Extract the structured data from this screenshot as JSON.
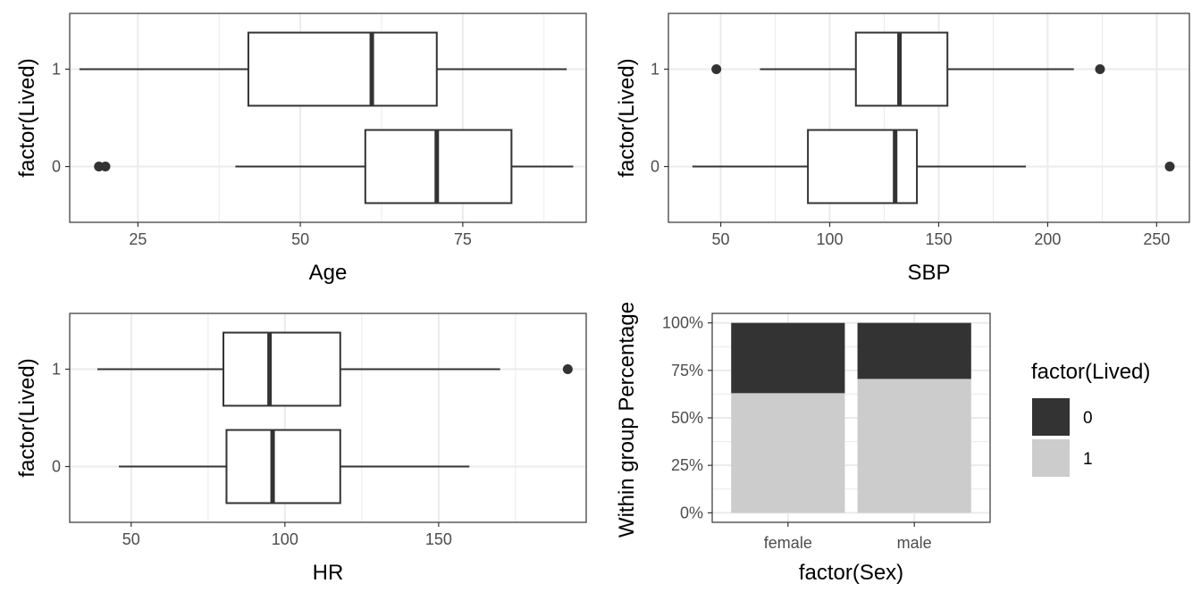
{
  "chart_data": [
    {
      "type": "boxplot",
      "orientation": "horizontal",
      "xlabel": "Age",
      "ylabel": "factor(Lived)",
      "xlim": [
        14.5,
        94
      ],
      "x_ticks": [
        25,
        50,
        75
      ],
      "x_tick_labels": [
        "25",
        "50",
        "75"
      ],
      "categories": [
        "0",
        "1"
      ],
      "boxes": [
        {
          "group": "1",
          "whisker_low": 16,
          "q1": 42,
          "median": 61,
          "q3": 71,
          "whisker_high": 91,
          "outliers": []
        },
        {
          "group": "0",
          "whisker_low": 40,
          "q1": 60,
          "median": 71,
          "q3": 82.5,
          "whisker_high": 92,
          "outliers": [
            19,
            20
          ]
        }
      ],
      "grid": true
    },
    {
      "type": "boxplot",
      "orientation": "horizontal",
      "xlabel": "SBP",
      "ylabel": "factor(Lived)",
      "xlim": [
        26,
        265
      ],
      "x_ticks": [
        50,
        100,
        150,
        200,
        250
      ],
      "x_tick_labels": [
        "50",
        "100",
        "150",
        "200",
        "250"
      ],
      "categories": [
        "0",
        "1"
      ],
      "boxes": [
        {
          "group": "1",
          "whisker_low": 68,
          "q1": 112,
          "median": 132,
          "q3": 154,
          "whisker_high": 212,
          "outliers": [
            48,
            224
          ]
        },
        {
          "group": "0",
          "whisker_low": 37,
          "q1": 90,
          "median": 130,
          "q3": 140,
          "whisker_high": 190,
          "outliers": [
            256
          ]
        }
      ],
      "grid": true
    },
    {
      "type": "boxplot",
      "orientation": "horizontal",
      "xlabel": "HR",
      "ylabel": "factor(Lived)",
      "xlim": [
        30,
        198
      ],
      "x_ticks": [
        50,
        100,
        150
      ],
      "x_tick_labels": [
        "50",
        "100",
        "150"
      ],
      "categories": [
        "0",
        "1"
      ],
      "boxes": [
        {
          "group": "1",
          "whisker_low": 39,
          "q1": 80,
          "median": 95,
          "q3": 118,
          "whisker_high": 170,
          "outliers": [
            192
          ]
        },
        {
          "group": "0",
          "whisker_low": 46,
          "q1": 81,
          "median": 96,
          "q3": 118,
          "whisker_high": 160,
          "outliers": []
        }
      ],
      "grid": true
    },
    {
      "type": "bar",
      "stacked": true,
      "xlabel": "factor(Sex)",
      "ylabel": "Within group Percentage",
      "categories": [
        "female",
        "male"
      ],
      "ylim": [
        -0.05,
        1.05
      ],
      "y_ticks": [
        0,
        0.25,
        0.5,
        0.75,
        1
      ],
      "y_tick_labels": [
        "0%",
        "25%",
        "50%",
        "75%",
        "100%"
      ],
      "series": [
        {
          "name": "0",
          "values": [
            0.37,
            0.295
          ],
          "color": "#333333"
        },
        {
          "name": "1",
          "values": [
            0.63,
            0.705
          ],
          "color": "#cccccc"
        }
      ],
      "legend": {
        "title": "factor(Lived)",
        "position": "right",
        "entries": [
          {
            "label": "0",
            "color": "#333333"
          },
          {
            "label": "1",
            "color": "#cccccc"
          }
        ]
      },
      "grid": true
    }
  ]
}
